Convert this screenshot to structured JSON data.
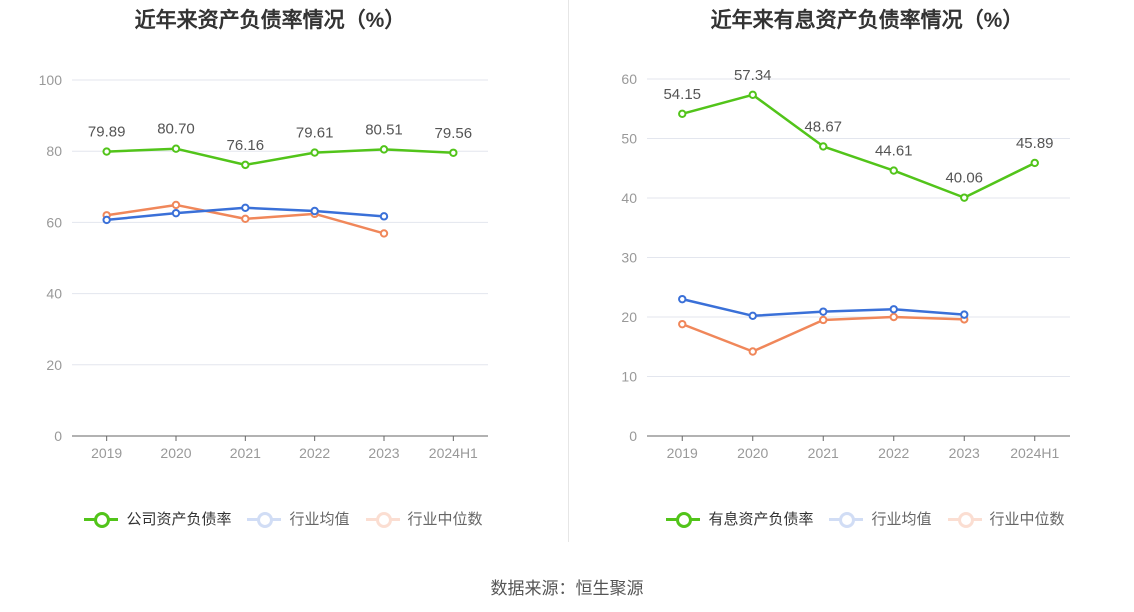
{
  "footer": {
    "source": "数据来源：恒生聚源"
  },
  "colors": {
    "company": "#52c41a",
    "avg": "#3a70d8",
    "median": "#f0875a",
    "legend_avg": "#9ab4ea",
    "legend_median": "#f8b89d"
  },
  "chart_data": [
    {
      "type": "line",
      "title": "近年来资产负债率情况（%）",
      "categories": [
        "2019",
        "2020",
        "2021",
        "2022",
        "2023",
        "2024H1"
      ],
      "ylim": [
        0,
        100
      ],
      "yticks": [
        0,
        20,
        40,
        60,
        80,
        100
      ],
      "grid": true,
      "legend_position": "bottom",
      "series": [
        {
          "name": "公司资产负债率",
          "color": "#52c41a",
          "labels": true,
          "values": [
            79.89,
            80.7,
            76.16,
            79.61,
            80.51,
            79.56
          ]
        },
        {
          "name": "行业均值",
          "color": "#3a70d8",
          "labels": false,
          "values": [
            60.7,
            62.6,
            64.1,
            63.2,
            61.7,
            null
          ]
        },
        {
          "name": "行业中位数",
          "color": "#f0875a",
          "labels": false,
          "values": [
            62.0,
            64.9,
            61.0,
            62.4,
            56.9,
            null
          ]
        }
      ]
    },
    {
      "type": "line",
      "title": "近年来有息资产负债率情况（%）",
      "categories": [
        "2019",
        "2020",
        "2021",
        "2022",
        "2023",
        "2024H1"
      ],
      "ylim": [
        0,
        60
      ],
      "yticks": [
        0,
        10,
        20,
        30,
        40,
        50,
        60
      ],
      "grid": true,
      "legend_position": "bottom",
      "series": [
        {
          "name": "有息资产负债率",
          "color": "#52c41a",
          "labels": true,
          "values": [
            54.15,
            57.34,
            48.67,
            44.61,
            40.06,
            45.89
          ]
        },
        {
          "name": "行业均值",
          "color": "#3a70d8",
          "labels": false,
          "values": [
            23.0,
            20.2,
            20.9,
            21.3,
            20.4,
            null
          ]
        },
        {
          "name": "行业中位数",
          "color": "#f0875a",
          "labels": false,
          "values": [
            18.8,
            14.2,
            19.5,
            20.0,
            19.6,
            null
          ]
        }
      ]
    }
  ]
}
